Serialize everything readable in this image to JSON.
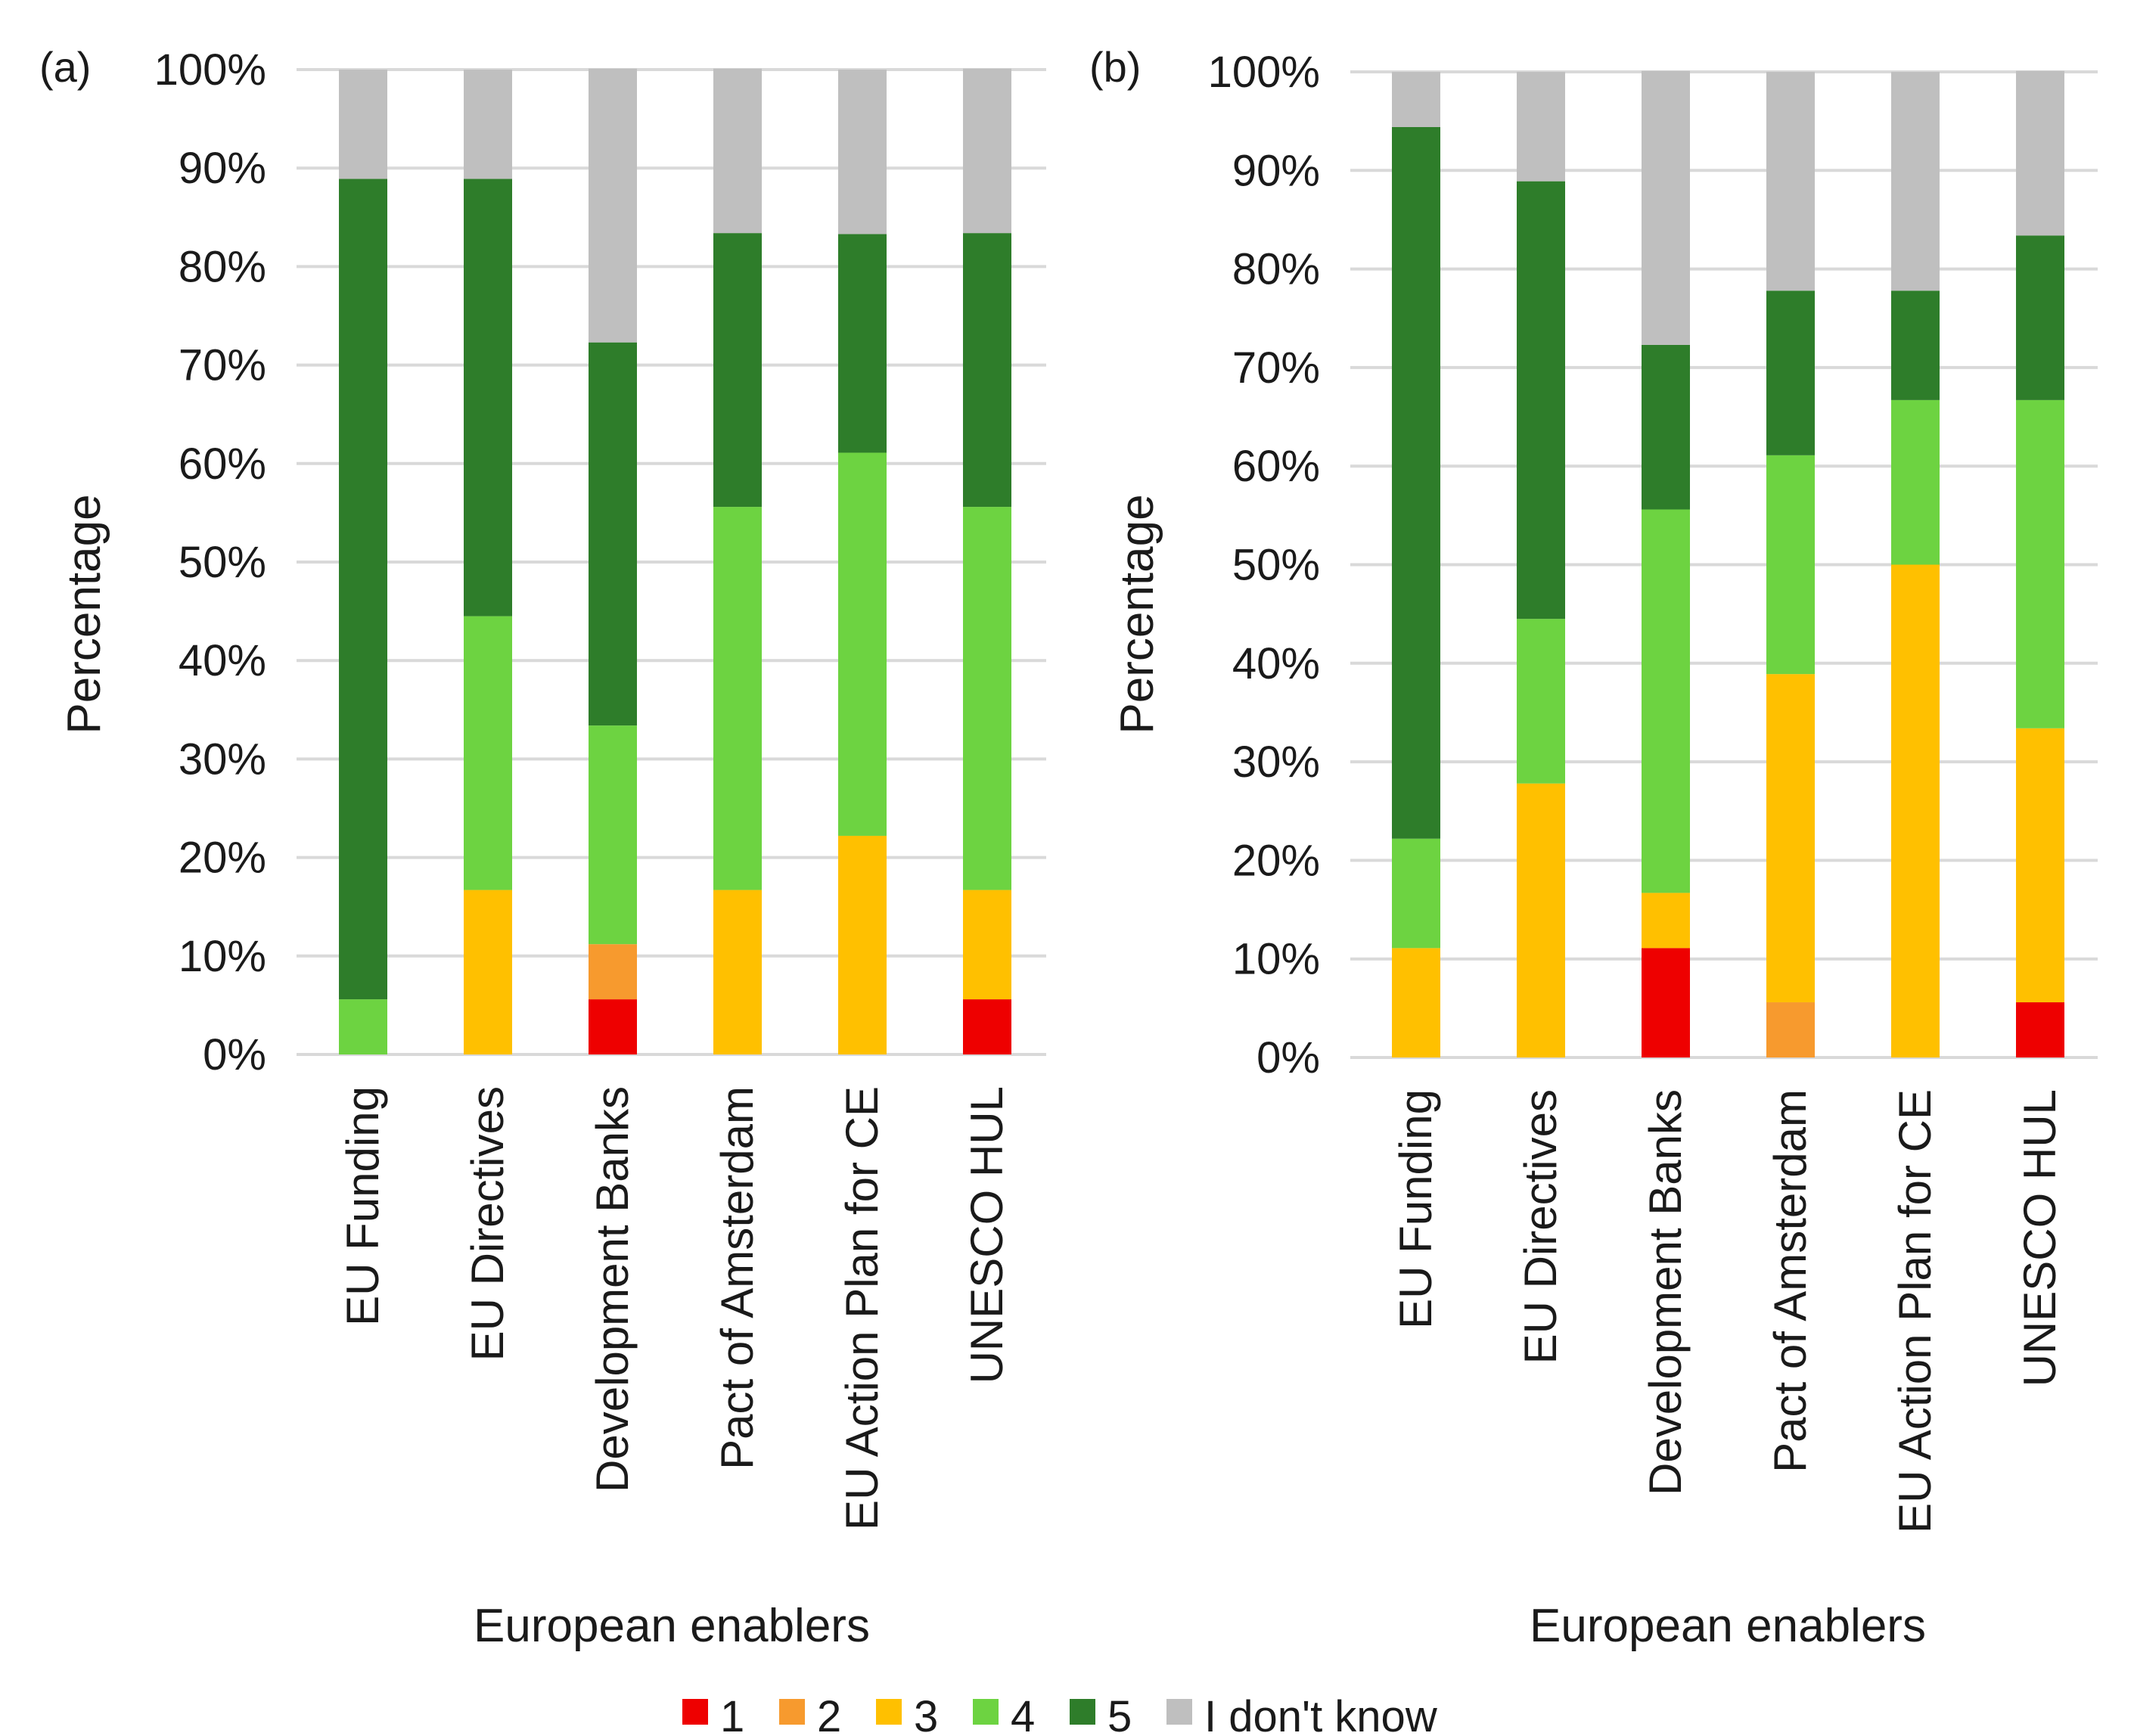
{
  "chart_data": [
    {
      "type": "bar",
      "stacked": true,
      "panel_label": "(a)",
      "xlabel": "European enablers",
      "ylabel": "Percentage",
      "ylim": [
        0,
        100
      ],
      "yticks": [
        "0%",
        "10%",
        "20%",
        "30%",
        "40%",
        "50%",
        "60%",
        "70%",
        "80%",
        "90%",
        "100%"
      ],
      "grid": true,
      "categories": [
        "EU Funding",
        "EU Directives",
        "Development Banks",
        "Pact of Amsterdam",
        "EU Action Plan for CE",
        "UNESCO HUL"
      ],
      "series": [
        {
          "name": "1",
          "values": [
            0,
            0,
            5.6,
            0,
            0,
            5.6
          ]
        },
        {
          "name": "2",
          "values": [
            0,
            0,
            5.6,
            0,
            0,
            0
          ]
        },
        {
          "name": "3",
          "values": [
            0,
            16.7,
            0,
            16.7,
            22.2,
            11.1
          ]
        },
        {
          "name": "4",
          "values": [
            5.6,
            27.8,
            22.2,
            38.9,
            38.9,
            38.9
          ]
        },
        {
          "name": "5",
          "values": [
            83.3,
            44.4,
            38.9,
            27.8,
            22.2,
            27.8
          ]
        },
        {
          "name": "I don't know",
          "values": [
            11.1,
            11.1,
            27.8,
            16.7,
            16.7,
            16.7
          ]
        }
      ]
    },
    {
      "type": "bar",
      "stacked": true,
      "panel_label": "(b)",
      "xlabel": "European enablers",
      "ylabel": "Percentage",
      "ylim": [
        0,
        100
      ],
      "yticks": [
        "0%",
        "10%",
        "20%",
        "30%",
        "40%",
        "50%",
        "60%",
        "70%",
        "80%",
        "90%",
        "100%"
      ],
      "grid": true,
      "categories": [
        "EU Funding",
        "EU Directives",
        "Development Banks",
        "Pact of Amsterdam",
        "EU Action Plan for CE",
        "UNESCO HUL"
      ],
      "series": [
        {
          "name": "1",
          "values": [
            0,
            0,
            11.1,
            0,
            0,
            5.6
          ]
        },
        {
          "name": "2",
          "values": [
            0,
            0,
            0,
            5.6,
            0,
            0
          ]
        },
        {
          "name": "3",
          "values": [
            11.1,
            27.8,
            5.6,
            33.3,
            50.0,
            27.8
          ]
        },
        {
          "name": "4",
          "values": [
            11.1,
            16.7,
            38.9,
            22.2,
            16.7,
            33.3
          ]
        },
        {
          "name": "5",
          "values": [
            72.2,
            44.4,
            16.7,
            16.7,
            11.1,
            16.7
          ]
        },
        {
          "name": "I don't know",
          "values": [
            5.6,
            11.1,
            27.8,
            22.2,
            22.2,
            16.7
          ]
        }
      ]
    }
  ],
  "legend": {
    "placement": "bottom-center",
    "items": [
      {
        "label": "1",
        "color": "#ee0000"
      },
      {
        "label": "2",
        "color": "#f79a2e"
      },
      {
        "label": "3",
        "color": "#ffc000"
      },
      {
        "label": "4",
        "color": "#6dd341"
      },
      {
        "label": "5",
        "color": "#2e7d2a"
      },
      {
        "label": "I don't know",
        "color": "#bfbfbf"
      }
    ]
  }
}
